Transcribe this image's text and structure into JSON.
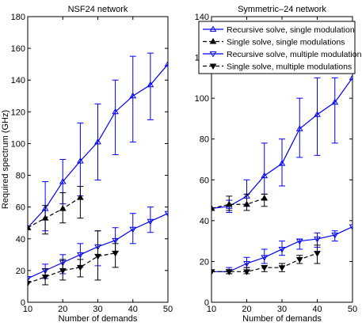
{
  "chart_data": [
    {
      "type": "line",
      "title": "NSF24 network",
      "xlabel": "Number of demands",
      "ylabel": "Required spectrum (GHz)",
      "xlim": [
        10,
        50
      ],
      "ylim": [
        0,
        180
      ],
      "xticks": [
        10,
        20,
        30,
        40,
        50
      ],
      "yticks": [
        0,
        20,
        40,
        60,
        80,
        100,
        120,
        140,
        160,
        180
      ],
      "series": [
        {
          "name": "Recursive solve, single modulation",
          "color": "#0000ff",
          "dash": "solid",
          "marker": "triangle-up",
          "x": [
            10,
            15,
            20,
            25,
            30,
            35,
            40,
            45,
            50
          ],
          "y": [
            47,
            59,
            76,
            89,
            101,
            120,
            130,
            137,
            150
          ],
          "err_low": [
            null,
            45,
            62,
            67,
            77,
            93,
            101,
            115,
            null
          ],
          "err_high": [
            null,
            76,
            90,
            113,
            125,
            140,
            155,
            157,
            null
          ]
        },
        {
          "name": "Single solve, single modulations",
          "color": "#000000",
          "dash": "dashed",
          "marker": "triangle-up",
          "x": [
            10,
            15,
            20,
            25
          ],
          "y": [
            47,
            53,
            59,
            66
          ],
          "err_low": [
            null,
            43,
            50,
            53
          ],
          "err_high": [
            null,
            61,
            69,
            73
          ]
        },
        {
          "name": "Recursive solve, multiple modulation",
          "color": "#0000ff",
          "dash": "solid",
          "marker": "triangle-down",
          "x": [
            10,
            15,
            20,
            25,
            30,
            35,
            40,
            45,
            50
          ],
          "y": [
            15,
            20,
            25,
            30,
            35,
            39,
            46,
            51,
            56
          ],
          "err_low": [
            null,
            15,
            18,
            22,
            23,
            32,
            37,
            44,
            null
          ],
          "err_high": [
            null,
            24,
            30,
            37,
            45,
            47,
            56,
            60,
            null
          ]
        },
        {
          "name": "Single solve, multiple modulations",
          "color": "#000000",
          "dash": "dashed",
          "marker": "triangle-down",
          "x": [
            10,
            15,
            20,
            25,
            30,
            35
          ],
          "y": [
            12,
            16,
            20,
            22,
            29,
            31
          ],
          "err_low": [
            null,
            11,
            14,
            16,
            14,
            22
          ],
          "err_high": [
            null,
            21,
            27,
            27,
            45,
            37
          ]
        }
      ]
    },
    {
      "type": "line",
      "title": "Symmetric–24 network",
      "xlabel": "Number of demands",
      "ylabel": "",
      "xlim": [
        10,
        50
      ],
      "ylim": [
        0,
        140
      ],
      "xticks": [
        10,
        20,
        30,
        40,
        50
      ],
      "yticks": [
        0,
        20,
        40,
        60,
        80,
        100,
        120,
        140
      ],
      "legend": "top-right",
      "series": [
        {
          "name": "Recursive solve, single modulation",
          "color": "#0000ff",
          "dash": "solid",
          "marker": "triangle-up",
          "x": [
            10,
            15,
            20,
            25,
            30,
            35,
            40,
            45,
            50
          ],
          "y": [
            46,
            47,
            52,
            62,
            68,
            85,
            92,
            98,
            110
          ],
          "err_low": [
            null,
            44,
            47,
            53,
            57,
            71,
            72,
            78,
            null
          ],
          "err_high": [
            null,
            50,
            60,
            78,
            80,
            100,
            110,
            110,
            null
          ]
        },
        {
          "name": "Single solve, single modulations",
          "color": "#000000",
          "dash": "dashed",
          "marker": "triangle-up",
          "x": [
            10,
            15,
            20,
            25
          ],
          "y": [
            46,
            48,
            48,
            51
          ],
          "err_low": [
            null,
            45,
            45,
            47
          ],
          "err_high": [
            null,
            52,
            53,
            53
          ]
        },
        {
          "name": "Recursive solve, multiple modulation",
          "color": "#0000ff",
          "dash": "solid",
          "marker": "triangle-down",
          "x": [
            10,
            15,
            20,
            25,
            30,
            35,
            40,
            45,
            50
          ],
          "y": [
            15,
            15,
            19,
            22,
            26,
            30,
            31,
            33,
            37
          ],
          "err_low": [
            null,
            14,
            17,
            19,
            23,
            26,
            27,
            30,
            null
          ],
          "err_high": [
            null,
            17,
            22,
            26,
            30,
            31,
            34,
            35,
            null
          ]
        },
        {
          "name": "Single solve, multiple modulations",
          "color": "#000000",
          "dash": "dashed",
          "marker": "triangle-down",
          "x": [
            10,
            15,
            20,
            25,
            30,
            35,
            40
          ],
          "y": [
            15,
            15,
            15,
            17,
            17,
            21,
            24
          ],
          "err_low": [
            null,
            14,
            14,
            15,
            15,
            19,
            19
          ],
          "err_high": [
            null,
            16,
            17,
            18,
            19,
            23,
            28
          ]
        }
      ]
    }
  ]
}
